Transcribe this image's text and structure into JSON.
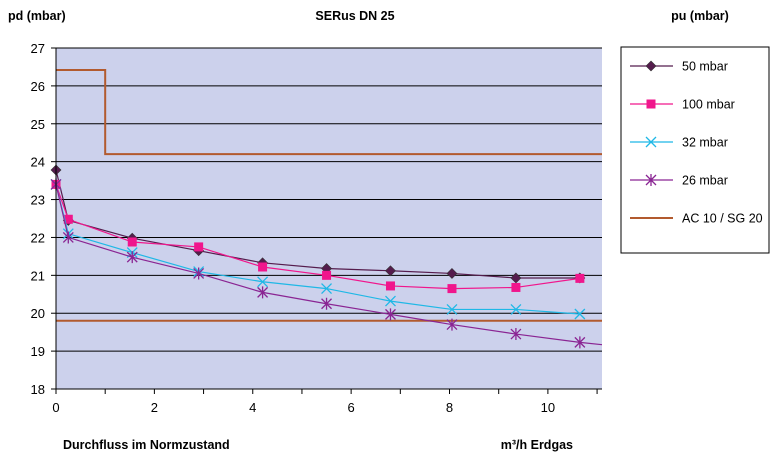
{
  "chart_data": {
    "type": "line",
    "title": "SERus DN 25",
    "ylabel": "pd (mbar)",
    "legend_title": "pu (mbar)",
    "xlabel": "Durchfluss im Normzustand",
    "xunit_label": "m³/h Erdgas",
    "xlim": [
      0,
      11.1
    ],
    "ylim": [
      18,
      27
    ],
    "xticks": [
      "0",
      "2",
      "4",
      "6",
      "8",
      "10"
    ],
    "yticks": [
      "18",
      "19",
      "20",
      "21",
      "22",
      "23",
      "24",
      "25",
      "26",
      "27"
    ],
    "grid": "horizontal",
    "legend_position": "right",
    "plot_background": "#ccd1ec",
    "series": [
      {
        "name": "50   mbar",
        "color": "#551c4d",
        "marker": "diamond",
        "x": [
          0.0,
          0.25,
          1.55,
          2.9,
          4.2,
          5.5,
          6.8,
          8.05,
          9.35,
          10.65
        ],
        "y": [
          23.78,
          22.45,
          21.98,
          21.65,
          21.33,
          21.18,
          21.12,
          21.05,
          20.93,
          20.93
        ]
      },
      {
        "name": "100   mbar",
        "color": "#f0168c",
        "marker": "square",
        "x": [
          0.0,
          0.25,
          1.55,
          2.9,
          4.2,
          5.5,
          6.8,
          8.05,
          9.35,
          10.65
        ],
        "y": [
          23.4,
          22.48,
          21.88,
          21.75,
          21.22,
          21.0,
          20.72,
          20.65,
          20.68,
          20.92
        ]
      },
      {
        "name": "32   mbar",
        "color": "#1fb8e6",
        "marker": "x",
        "x": [
          0.0,
          0.25,
          1.55,
          2.9,
          4.2,
          5.5,
          6.8,
          8.05,
          9.35,
          10.65
        ],
        "y": [
          23.4,
          22.1,
          21.6,
          21.1,
          20.83,
          20.65,
          20.32,
          20.1,
          20.1,
          19.98
        ]
      },
      {
        "name": "26   mbar",
        "color": "#8a2593",
        "marker": "asterisk",
        "x": [
          0.0,
          0.25,
          1.55,
          2.9,
          4.2,
          5.5,
          6.8,
          8.05,
          9.35,
          10.65,
          11.1
        ],
        "y": [
          23.4,
          22.0,
          21.48,
          21.05,
          20.55,
          20.25,
          19.97,
          19.7,
          19.45,
          19.23,
          19.17
        ]
      },
      {
        "name": "AC  10 / SG 20",
        "color": "#b25a2e",
        "marker": "none",
        "steps": [
          {
            "x": [
              0.0,
              1.0,
              1.0,
              11.1
            ],
            "y": [
              26.42,
              26.42,
              24.2,
              24.2
            ]
          },
          {
            "x": [
              0.0,
              11.1
            ],
            "y": [
              19.8,
              19.8
            ]
          }
        ]
      }
    ]
  }
}
